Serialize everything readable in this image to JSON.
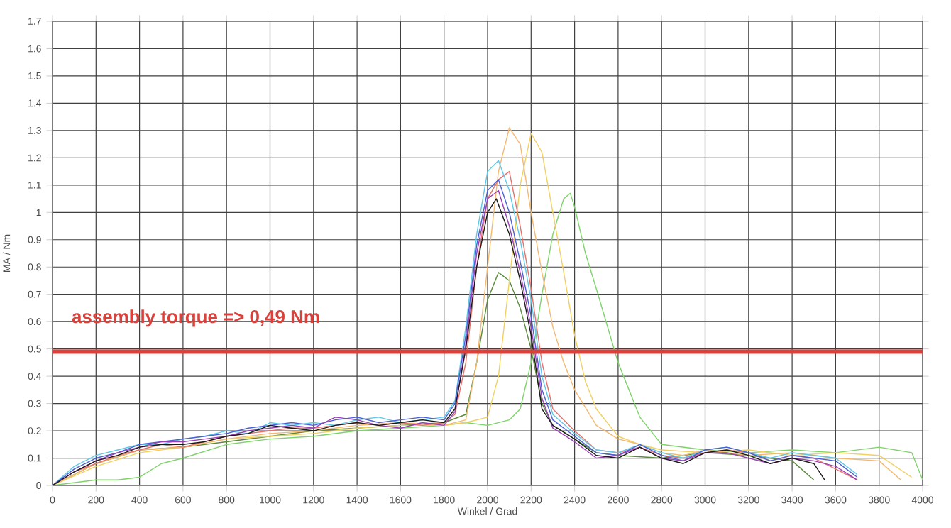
{
  "chart_data": {
    "type": "line",
    "xlabel": "Winkel / Grad",
    "ylabel": "MA / Nm",
    "xlim": [
      0,
      4000
    ],
    "xticks": [
      0,
      200,
      400,
      600,
      800,
      1000,
      1200,
      1400,
      1600,
      1800,
      2000,
      2200,
      2400,
      2600,
      2800,
      3000,
      3200,
      3400,
      3600,
      3800,
      4000
    ],
    "ylim": [
      0,
      1.7
    ],
    "yticks": [
      0,
      0.1,
      0.2,
      0.3,
      0.4,
      0.5,
      0.6,
      0.7,
      0.8,
      0.9,
      1,
      1.1,
      1.2,
      1.3,
      1.4,
      1.5,
      1.6,
      1.7
    ],
    "grid": true,
    "marker": "none",
    "line_style": "solid",
    "ref_lines": [
      {
        "axis": "y",
        "value": 0.49,
        "label": "assembly torque  => 0,49 Nm",
        "color": "#d9413a"
      }
    ],
    "series": [
      {
        "color": "#5a8a3a",
        "x": [
          0,
          200,
          400,
          600,
          800,
          1000,
          1200,
          1400,
          1600,
          1800,
          1900,
          1950,
          2000,
          2050,
          2100,
          2150,
          2200,
          2250,
          2300,
          2400,
          2500,
          2600,
          2800,
          3000,
          3200,
          3400,
          3500
        ],
        "values": [
          0,
          0.08,
          0.13,
          0.14,
          0.16,
          0.18,
          0.2,
          0.21,
          0.22,
          0.23,
          0.26,
          0.45,
          0.68,
          0.78,
          0.75,
          0.65,
          0.5,
          0.3,
          0.22,
          0.17,
          0.12,
          0.11,
          0.1,
          0.12,
          0.11,
          0.09,
          0.02
        ]
      },
      {
        "color": "#7ed36a",
        "x": [
          0,
          200,
          300,
          400,
          500,
          600,
          800,
          1000,
          1200,
          1400,
          1600,
          1800,
          1900,
          2000,
          2100,
          2150,
          2200,
          2250,
          2300,
          2350,
          2380,
          2400,
          2450,
          2500,
          2600,
          2700,
          2800,
          3000,
          3200,
          3400,
          3600,
          3800,
          3950,
          4000
        ],
        "values": [
          0,
          0.02,
          0.02,
          0.03,
          0.08,
          0.1,
          0.15,
          0.17,
          0.18,
          0.2,
          0.21,
          0.22,
          0.23,
          0.22,
          0.24,
          0.28,
          0.45,
          0.7,
          0.92,
          1.05,
          1.07,
          1.02,
          0.85,
          0.72,
          0.45,
          0.25,
          0.15,
          0.13,
          0.12,
          0.13,
          0.12,
          0.14,
          0.12,
          0.02
        ]
      },
      {
        "color": "#f0d060",
        "x": [
          0,
          200,
          400,
          600,
          800,
          1000,
          1200,
          1400,
          1600,
          1800,
          1900,
          2000,
          2050,
          2100,
          2150,
          2200,
          2250,
          2300,
          2350,
          2400,
          2450,
          2500,
          2600,
          2700,
          2800,
          3000,
          3200,
          3400,
          3600,
          3800,
          3950
        ],
        "values": [
          0,
          0.07,
          0.12,
          0.14,
          0.17,
          0.18,
          0.19,
          0.21,
          0.22,
          0.22,
          0.23,
          0.25,
          0.4,
          0.75,
          1.1,
          1.29,
          1.22,
          1,
          0.78,
          0.55,
          0.38,
          0.28,
          0.18,
          0.15,
          0.13,
          0.12,
          0.13,
          0.11,
          0.12,
          0.11,
          0.03
        ]
      },
      {
        "color": "#f5b870",
        "x": [
          0,
          200,
          400,
          600,
          800,
          1000,
          1200,
          1400,
          1600,
          1800,
          1900,
          1950,
          2000,
          2050,
          2100,
          2150,
          2200,
          2250,
          2300,
          2350,
          2400,
          2500,
          2600,
          2700,
          2800,
          2900,
          3000,
          3200,
          3400,
          3600,
          3800,
          3900
        ],
        "values": [
          0,
          0.08,
          0.13,
          0.14,
          0.17,
          0.19,
          0.2,
          0.22,
          0.23,
          0.22,
          0.24,
          0.45,
          0.8,
          1.15,
          1.31,
          1.25,
          1,
          0.78,
          0.58,
          0.45,
          0.35,
          0.22,
          0.17,
          0.15,
          0.12,
          0.11,
          0.13,
          0.11,
          0.12,
          0.1,
          0.09,
          0.02
        ]
      },
      {
        "color": "#e8706a",
        "x": [
          0,
          100,
          200,
          300,
          400,
          500,
          600,
          700,
          800,
          900,
          1000,
          1100,
          1200,
          1300,
          1400,
          1500,
          1600,
          1700,
          1800,
          1850,
          1900,
          1950,
          2000,
          2050,
          2100,
          2150,
          2200,
          2250,
          2300,
          2400,
          2500,
          2600,
          2700,
          2800,
          2900,
          3000,
          3100,
          3200,
          3300,
          3400,
          3500,
          3600,
          3700
        ],
        "values": [
          0,
          0.05,
          0.08,
          0.11,
          0.13,
          0.15,
          0.14,
          0.16,
          0.18,
          0.19,
          0.2,
          0.21,
          0.21,
          0.22,
          0.23,
          0.22,
          0.23,
          0.22,
          0.23,
          0.26,
          0.45,
          0.8,
          1.05,
          1.12,
          1.15,
          0.95,
          0.72,
          0.45,
          0.28,
          0.2,
          0.13,
          0.12,
          0.14,
          0.11,
          0.1,
          0.12,
          0.13,
          0.12,
          0.09,
          0.11,
          0.1,
          0.06,
          0.02
        ]
      },
      {
        "color": "#5fc8e8",
        "x": [
          0,
          100,
          200,
          300,
          400,
          500,
          600,
          700,
          800,
          900,
          1000,
          1100,
          1200,
          1300,
          1400,
          1500,
          1600,
          1700,
          1800,
          1850,
          1900,
          1950,
          2000,
          2050,
          2100,
          2150,
          2200,
          2250,
          2300,
          2400,
          2500,
          2600,
          2700,
          2800,
          2900,
          3000,
          3100,
          3200,
          3300,
          3400,
          3500,
          3600,
          3700
        ],
        "values": [
          0,
          0.07,
          0.11,
          0.13,
          0.15,
          0.15,
          0.17,
          0.18,
          0.2,
          0.19,
          0.23,
          0.22,
          0.23,
          0.22,
          0.24,
          0.25,
          0.23,
          0.24,
          0.25,
          0.31,
          0.58,
          0.92,
          1.15,
          1.19,
          1.08,
          0.9,
          0.68,
          0.4,
          0.26,
          0.19,
          0.13,
          0.12,
          0.15,
          0.12,
          0.1,
          0.13,
          0.14,
          0.12,
          0.1,
          0.12,
          0.11,
          0.1,
          0.04
        ]
      },
      {
        "color": "#4a5fd6",
        "x": [
          0,
          100,
          200,
          300,
          400,
          500,
          600,
          700,
          800,
          900,
          1000,
          1100,
          1200,
          1300,
          1400,
          1500,
          1600,
          1700,
          1800,
          1850,
          1900,
          1950,
          2000,
          2050,
          2100,
          2150,
          2200,
          2250,
          2300,
          2400,
          2500,
          2600,
          2700,
          2800,
          2900,
          3000,
          3100,
          3200,
          3300,
          3400,
          3500,
          3600,
          3700
        ],
        "values": [
          0,
          0.06,
          0.1,
          0.12,
          0.15,
          0.16,
          0.17,
          0.18,
          0.19,
          0.21,
          0.22,
          0.23,
          0.22,
          0.24,
          0.25,
          0.23,
          0.24,
          0.25,
          0.24,
          0.3,
          0.55,
          0.88,
          1.08,
          1.12,
          1,
          0.82,
          0.62,
          0.35,
          0.24,
          0.18,
          0.12,
          0.11,
          0.15,
          0.11,
          0.09,
          0.13,
          0.14,
          0.12,
          0.09,
          0.11,
          0.1,
          0.09,
          0.03
        ]
      },
      {
        "color": "#9b3fb5",
        "x": [
          0,
          100,
          200,
          300,
          400,
          500,
          600,
          700,
          800,
          900,
          1000,
          1100,
          1200,
          1300,
          1400,
          1500,
          1600,
          1700,
          1800,
          1850,
          1900,
          1950,
          2000,
          2050,
          2100,
          2150,
          2200,
          2250,
          2300,
          2400,
          2500,
          2600,
          2700,
          2800,
          2900,
          3000,
          3100,
          3200,
          3300,
          3400,
          3500,
          3600,
          3700
        ],
        "values": [
          0,
          0.05,
          0.09,
          0.12,
          0.14,
          0.16,
          0.16,
          0.17,
          0.18,
          0.2,
          0.21,
          0.22,
          0.21,
          0.25,
          0.24,
          0.22,
          0.21,
          0.23,
          0.22,
          0.27,
          0.52,
          0.85,
          1.05,
          1.08,
          0.95,
          0.78,
          0.58,
          0.32,
          0.21,
          0.16,
          0.1,
          0.11,
          0.14,
          0.1,
          0.09,
          0.12,
          0.12,
          0.1,
          0.08,
          0.1,
          0.09,
          0.07,
          0.02
        ]
      },
      {
        "color": "#1a1a1a",
        "x": [
          0,
          100,
          200,
          300,
          400,
          500,
          600,
          700,
          800,
          900,
          1000,
          1100,
          1200,
          1300,
          1400,
          1500,
          1600,
          1700,
          1800,
          1850,
          1900,
          1950,
          2000,
          2040,
          2100,
          2150,
          2200,
          2250,
          2300,
          2400,
          2500,
          2600,
          2700,
          2800,
          2900,
          3000,
          3100,
          3200,
          3300,
          3400,
          3500,
          3550
        ],
        "values": [
          0,
          0.05,
          0.09,
          0.11,
          0.14,
          0.15,
          0.15,
          0.16,
          0.18,
          0.19,
          0.22,
          0.21,
          0.2,
          0.22,
          0.23,
          0.22,
          0.23,
          0.24,
          0.23,
          0.28,
          0.5,
          0.8,
          1,
          1.05,
          0.92,
          0.75,
          0.55,
          0.28,
          0.22,
          0.17,
          0.11,
          0.1,
          0.14,
          0.1,
          0.08,
          0.12,
          0.13,
          0.11,
          0.08,
          0.1,
          0.08,
          0.02
        ]
      }
    ]
  }
}
